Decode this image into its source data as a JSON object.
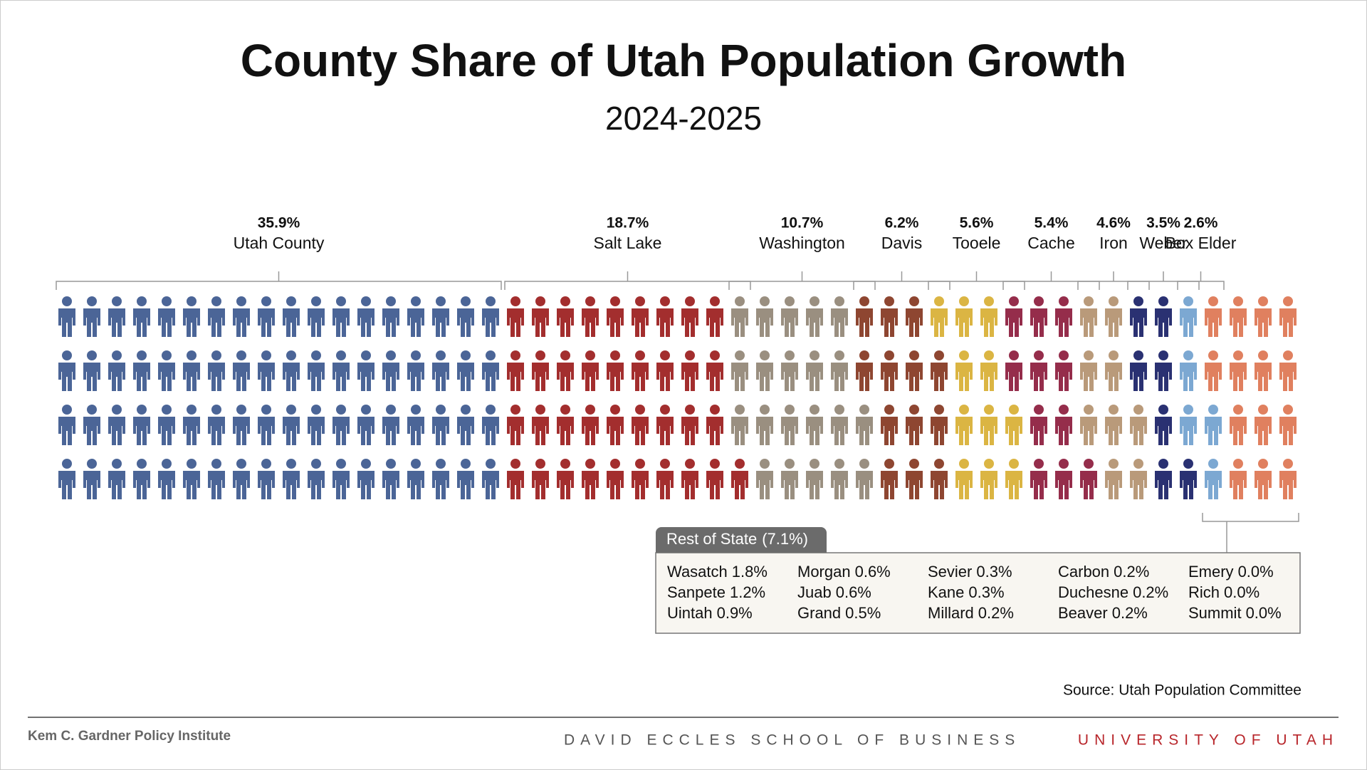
{
  "chart_data": {
    "type": "pictogram",
    "title": "County Share of Utah Population Growth",
    "subtitle": "2024-2025",
    "series": [
      {
        "name": "Utah County",
        "value": 35.9,
        "value_label": "35.9%",
        "color": "#4b6597"
      },
      {
        "name": "Salt Lake",
        "value": 18.7,
        "value_label": "18.7%",
        "color": "#a32e2e"
      },
      {
        "name": "Washington",
        "value": 10.7,
        "value_label": "10.7%",
        "color": "#9a8f80"
      },
      {
        "name": "Davis",
        "value": 6.2,
        "value_label": "6.2%",
        "color": "#8e4631"
      },
      {
        "name": "Tooele",
        "value": 5.6,
        "value_label": "5.6%",
        "color": "#dbb543"
      },
      {
        "name": "Cache",
        "value": 5.4,
        "value_label": "5.4%",
        "color": "#952d4b"
      },
      {
        "name": "Iron",
        "value": 4.6,
        "value_label": "4.6%",
        "color": "#b99a7a"
      },
      {
        "name": "Weber",
        "value": 3.5,
        "value_label": "3.5%",
        "color": "#2a3172"
      },
      {
        "name": "Box Elder",
        "value": 2.6,
        "value_label": "2.6%",
        "color": "#7ca8d2"
      }
    ],
    "rest": {
      "name": "Rest of State",
      "value": 7.1,
      "value_label": "(7.1%)",
      "color": "#e0805f",
      "items": [
        {
          "name": "Wasatch",
          "value": 1.8,
          "value_label": "1.8%"
        },
        {
          "name": "Sanpete",
          "value": 1.2,
          "value_label": "1.2%"
        },
        {
          "name": "Uintah",
          "value": 0.9,
          "value_label": "0.9%"
        },
        {
          "name": "Morgan",
          "value": 0.6,
          "value_label": "0.6%"
        },
        {
          "name": "Juab",
          "value": 0.6,
          "value_label": "0.6%"
        },
        {
          "name": "Grand",
          "value": 0.5,
          "value_label": "0.5%"
        },
        {
          "name": "Sevier",
          "value": 0.3,
          "value_label": "0.3%"
        },
        {
          "name": "Kane",
          "value": 0.3,
          "value_label": "0.3%"
        },
        {
          "name": "Millard",
          "value": 0.2,
          "value_label": "0.2%"
        },
        {
          "name": "Carbon",
          "value": 0.2,
          "value_label": "0.2%"
        },
        {
          "name": "Duchesne",
          "value": 0.2,
          "value_label": "0.2%"
        },
        {
          "name": "Beaver",
          "value": 0.2,
          "value_label": "0.2%"
        },
        {
          "name": "Emery",
          "value": 0.0,
          "value_label": "0.0%"
        },
        {
          "name": "Rich",
          "value": 0.0,
          "value_label": "0.0%"
        },
        {
          "name": "Summit",
          "value": 0.0,
          "value_label": "0.0%"
        }
      ]
    },
    "source": "Source: Utah Population Committee"
  },
  "footer": {
    "institute": "Kem C. Gardner Policy Institute",
    "school": "DAVID ECCLES SCHOOL OF BUSINESS",
    "university": "UNIVERSITY OF UTAH"
  }
}
